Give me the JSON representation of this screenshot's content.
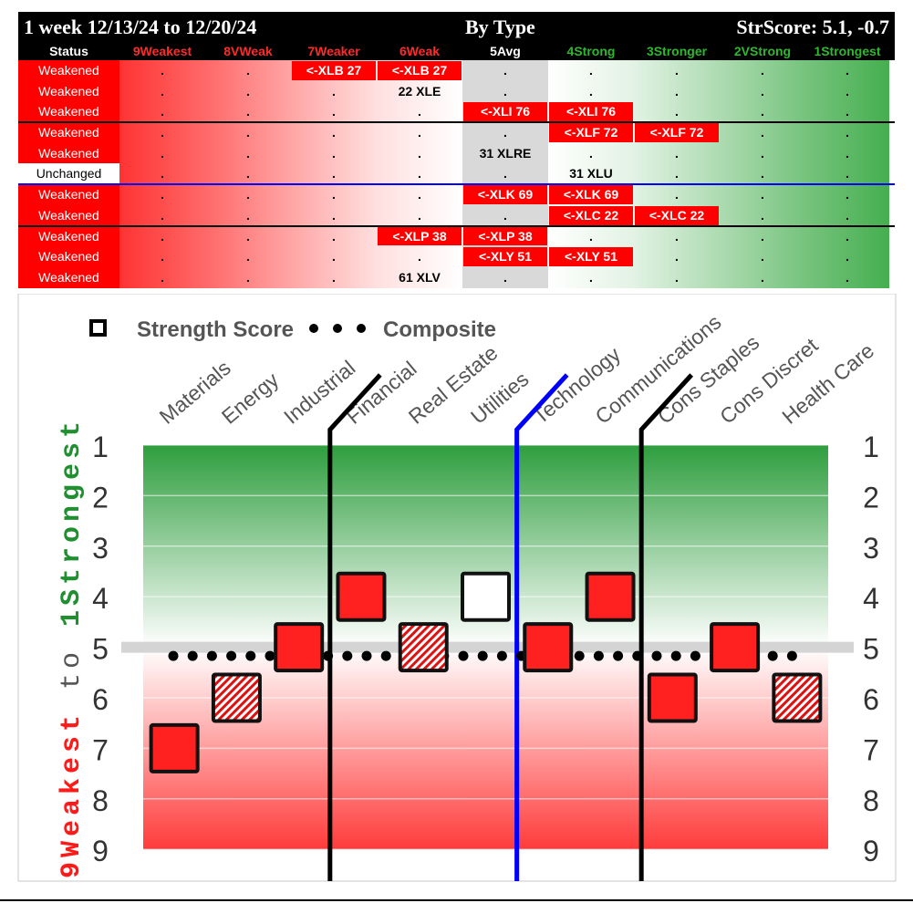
{
  "header": {
    "period": "1 week 12/13/24 to 12/20/24",
    "type": "By Type",
    "strscore": "StrScore: 5.1, -0.7"
  },
  "columns": [
    {
      "label": "Status",
      "color": "#ffffff"
    },
    {
      "label": "9Weakest",
      "color": "#ff2a2a"
    },
    {
      "label": "8VWeak",
      "color": "#ff2a2a"
    },
    {
      "label": "7Weaker",
      "color": "#ff2a2a"
    },
    {
      "label": "6Weak",
      "color": "#ff2a2a"
    },
    {
      "label": "5Avg",
      "color": "#ffffff"
    },
    {
      "label": "4Strong",
      "color": "#2eb82e"
    },
    {
      "label": "3Stronger",
      "color": "#2eb82e"
    },
    {
      "label": "2VStrong",
      "color": "#2eb82e"
    },
    {
      "label": "1Strongest",
      "color": "#2eb82e"
    }
  ],
  "rows": [
    {
      "status": "Weakened",
      "cells": [
        ".",
        ".",
        "<-XLB 27",
        "<-XLB 27",
        ".",
        ".",
        ".",
        ".",
        "."
      ],
      "tags": [
        2,
        3
      ]
    },
    {
      "status": "Weakened",
      "cells": [
        ".",
        ".",
        ".",
        "22 XLE",
        ".",
        ".",
        ".",
        ".",
        "."
      ],
      "tags": []
    },
    {
      "status": "Weakened",
      "cells": [
        ".",
        ".",
        ".",
        ".",
        "<-XLI 76",
        "<-XLI 76",
        ".",
        ".",
        "."
      ],
      "tags": [
        4,
        5
      ]
    },
    {
      "status": "Weakened",
      "cells": [
        ".",
        ".",
        ".",
        ".",
        ".",
        "<-XLF 72",
        "<-XLF 72",
        ".",
        "."
      ],
      "tags": [
        5,
        6
      ]
    },
    {
      "status": "Weakened",
      "cells": [
        ".",
        ".",
        ".",
        ".",
        "31 XLRE",
        ".",
        ".",
        ".",
        "."
      ],
      "tags": []
    },
    {
      "status": "Unchanged",
      "cells": [
        ".",
        ".",
        ".",
        ".",
        ".",
        "31 XLU",
        ".",
        ".",
        "."
      ],
      "tags": []
    },
    {
      "status": "Weakened",
      "cells": [
        ".",
        ".",
        ".",
        ".",
        "<-XLK 69",
        "<-XLK 69",
        ".",
        ".",
        "."
      ],
      "tags": [
        4,
        5
      ]
    },
    {
      "status": "Weakened",
      "cells": [
        ".",
        ".",
        ".",
        ".",
        ".",
        "<-XLC 22",
        "<-XLC 22",
        ".",
        "."
      ],
      "tags": [
        5,
        6
      ]
    },
    {
      "status": "Weakened",
      "cells": [
        ".",
        ".",
        ".",
        "<-XLP 38",
        "<-XLP 38",
        ".",
        ".",
        ".",
        "."
      ],
      "tags": [
        3,
        4
      ]
    },
    {
      "status": "Weakened",
      "cells": [
        ".",
        ".",
        ".",
        ".",
        "<-XLY 51",
        "<-XLY 51",
        ".",
        ".",
        "."
      ],
      "tags": [
        4,
        5
      ]
    },
    {
      "status": "Weakened",
      "cells": [
        ".",
        ".",
        ".",
        "61 XLV",
        ".",
        ".",
        ".",
        ".",
        "."
      ],
      "tags": []
    }
  ],
  "chart_data": {
    "type": "scatter",
    "legend": [
      {
        "marker": "square",
        "label": "Strength Score"
      },
      {
        "marker": "dots",
        "label": "Composite"
      }
    ],
    "ylabel_weak": "9Weakest",
    "ylabel_to": "to",
    "ylabel_strong": "1Strongest",
    "ylim": [
      9,
      1
    ],
    "yticks": [
      1,
      2,
      3,
      4,
      5,
      6,
      7,
      8,
      9
    ],
    "categories": [
      "Materials",
      "Energy",
      "Industrial",
      "Financial",
      "Real Estate",
      "Utilities",
      "Technology",
      "Communications",
      "Cons Staples",
      "Cons Discret",
      "Health Care"
    ],
    "values": [
      7,
      6,
      5,
      4,
      5,
      4,
      5,
      4,
      6,
      5,
      6
    ],
    "styles": [
      "solid",
      "hatched",
      "solid",
      "solid",
      "hatched",
      "open",
      "solid",
      "solid",
      "solid",
      "solid",
      "hatched"
    ],
    "composite": 5.1,
    "dividers": [
      {
        "after": 2,
        "color": "#000000"
      },
      {
        "after": 5,
        "color": "#0000ff"
      },
      {
        "after": 7,
        "color": "#000000"
      }
    ],
    "colors": {
      "strong": "#2e9e3e",
      "weak": "#ff3b3b",
      "square_fill": "#ff2020"
    }
  }
}
